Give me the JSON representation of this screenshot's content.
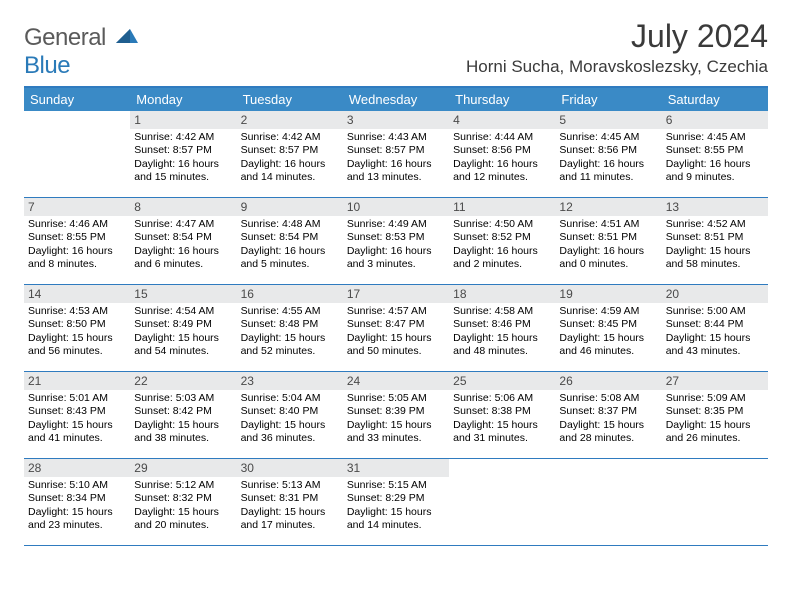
{
  "logo": {
    "general": "General",
    "blue": "Blue"
  },
  "header": {
    "monthTitle": "July 2024",
    "location": "Horni Sucha, Moravskoslezsky, Czechia"
  },
  "colors": {
    "headerBar": "#3a8ac6",
    "rowBorder": "#2f7bbf",
    "dayNumBg": "#e8e9ea",
    "logoBlue": "#2a7ab8",
    "logoGray": "#5a5a5a",
    "textDark": "#3a3a3a"
  },
  "daysOfWeek": [
    "Sunday",
    "Monday",
    "Tuesday",
    "Wednesday",
    "Thursday",
    "Friday",
    "Saturday"
  ],
  "layout": {
    "columns": 7,
    "rows": 5,
    "firstDayColumnIndex": 1
  },
  "days": [
    {
      "n": 1,
      "sunrise": "4:42 AM",
      "sunset": "8:57 PM",
      "dl1": "Daylight: 16 hours",
      "dl2": "and 15 minutes."
    },
    {
      "n": 2,
      "sunrise": "4:42 AM",
      "sunset": "8:57 PM",
      "dl1": "Daylight: 16 hours",
      "dl2": "and 14 minutes."
    },
    {
      "n": 3,
      "sunrise": "4:43 AM",
      "sunset": "8:57 PM",
      "dl1": "Daylight: 16 hours",
      "dl2": "and 13 minutes."
    },
    {
      "n": 4,
      "sunrise": "4:44 AM",
      "sunset": "8:56 PM",
      "dl1": "Daylight: 16 hours",
      "dl2": "and 12 minutes."
    },
    {
      "n": 5,
      "sunrise": "4:45 AM",
      "sunset": "8:56 PM",
      "dl1": "Daylight: 16 hours",
      "dl2": "and 11 minutes."
    },
    {
      "n": 6,
      "sunrise": "4:45 AM",
      "sunset": "8:55 PM",
      "dl1": "Daylight: 16 hours",
      "dl2": "and 9 minutes."
    },
    {
      "n": 7,
      "sunrise": "4:46 AM",
      "sunset": "8:55 PM",
      "dl1": "Daylight: 16 hours",
      "dl2": "and 8 minutes."
    },
    {
      "n": 8,
      "sunrise": "4:47 AM",
      "sunset": "8:54 PM",
      "dl1": "Daylight: 16 hours",
      "dl2": "and 6 minutes."
    },
    {
      "n": 9,
      "sunrise": "4:48 AM",
      "sunset": "8:54 PM",
      "dl1": "Daylight: 16 hours",
      "dl2": "and 5 minutes."
    },
    {
      "n": 10,
      "sunrise": "4:49 AM",
      "sunset": "8:53 PM",
      "dl1": "Daylight: 16 hours",
      "dl2": "and 3 minutes."
    },
    {
      "n": 11,
      "sunrise": "4:50 AM",
      "sunset": "8:52 PM",
      "dl1": "Daylight: 16 hours",
      "dl2": "and 2 minutes."
    },
    {
      "n": 12,
      "sunrise": "4:51 AM",
      "sunset": "8:51 PM",
      "dl1": "Daylight: 16 hours",
      "dl2": "and 0 minutes."
    },
    {
      "n": 13,
      "sunrise": "4:52 AM",
      "sunset": "8:51 PM",
      "dl1": "Daylight: 15 hours",
      "dl2": "and 58 minutes."
    },
    {
      "n": 14,
      "sunrise": "4:53 AM",
      "sunset": "8:50 PM",
      "dl1": "Daylight: 15 hours",
      "dl2": "and 56 minutes."
    },
    {
      "n": 15,
      "sunrise": "4:54 AM",
      "sunset": "8:49 PM",
      "dl1": "Daylight: 15 hours",
      "dl2": "and 54 minutes."
    },
    {
      "n": 16,
      "sunrise": "4:55 AM",
      "sunset": "8:48 PM",
      "dl1": "Daylight: 15 hours",
      "dl2": "and 52 minutes."
    },
    {
      "n": 17,
      "sunrise": "4:57 AM",
      "sunset": "8:47 PM",
      "dl1": "Daylight: 15 hours",
      "dl2": "and 50 minutes."
    },
    {
      "n": 18,
      "sunrise": "4:58 AM",
      "sunset": "8:46 PM",
      "dl1": "Daylight: 15 hours",
      "dl2": "and 48 minutes."
    },
    {
      "n": 19,
      "sunrise": "4:59 AM",
      "sunset": "8:45 PM",
      "dl1": "Daylight: 15 hours",
      "dl2": "and 46 minutes."
    },
    {
      "n": 20,
      "sunrise": "5:00 AM",
      "sunset": "8:44 PM",
      "dl1": "Daylight: 15 hours",
      "dl2": "and 43 minutes."
    },
    {
      "n": 21,
      "sunrise": "5:01 AM",
      "sunset": "8:43 PM",
      "dl1": "Daylight: 15 hours",
      "dl2": "and 41 minutes."
    },
    {
      "n": 22,
      "sunrise": "5:03 AM",
      "sunset": "8:42 PM",
      "dl1": "Daylight: 15 hours",
      "dl2": "and 38 minutes."
    },
    {
      "n": 23,
      "sunrise": "5:04 AM",
      "sunset": "8:40 PM",
      "dl1": "Daylight: 15 hours",
      "dl2": "and 36 minutes."
    },
    {
      "n": 24,
      "sunrise": "5:05 AM",
      "sunset": "8:39 PM",
      "dl1": "Daylight: 15 hours",
      "dl2": "and 33 minutes."
    },
    {
      "n": 25,
      "sunrise": "5:06 AM",
      "sunset": "8:38 PM",
      "dl1": "Daylight: 15 hours",
      "dl2": "and 31 minutes."
    },
    {
      "n": 26,
      "sunrise": "5:08 AM",
      "sunset": "8:37 PM",
      "dl1": "Daylight: 15 hours",
      "dl2": "and 28 minutes."
    },
    {
      "n": 27,
      "sunrise": "5:09 AM",
      "sunset": "8:35 PM",
      "dl1": "Daylight: 15 hours",
      "dl2": "and 26 minutes."
    },
    {
      "n": 28,
      "sunrise": "5:10 AM",
      "sunset": "8:34 PM",
      "dl1": "Daylight: 15 hours",
      "dl2": "and 23 minutes."
    },
    {
      "n": 29,
      "sunrise": "5:12 AM",
      "sunset": "8:32 PM",
      "dl1": "Daylight: 15 hours",
      "dl2": "and 20 minutes."
    },
    {
      "n": 30,
      "sunrise": "5:13 AM",
      "sunset": "8:31 PM",
      "dl1": "Daylight: 15 hours",
      "dl2": "and 17 minutes."
    },
    {
      "n": 31,
      "sunrise": "5:15 AM",
      "sunset": "8:29 PM",
      "dl1": "Daylight: 15 hours",
      "dl2": "and 14 minutes."
    }
  ],
  "labels": {
    "sunrise": "Sunrise:",
    "sunset": "Sunset:"
  }
}
